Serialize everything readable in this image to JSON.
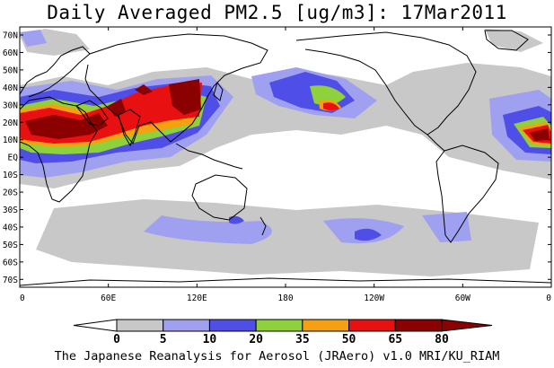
{
  "title": "Daily Averaged PM2.5 [ug/m3]: 17Mar2011",
  "footer": "The Japanese Reanalysis for Aerosol (JRAero) v1.0 MRI/KU_RIAM",
  "map": {
    "lon_ticks": [
      "0",
      "60E",
      "120E",
      "180",
      "120W",
      "60W",
      "0"
    ],
    "lat_ticks": [
      "70N",
      "60N",
      "50N",
      "40N",
      "30N",
      "20N",
      "10N",
      "EQ",
      "10S",
      "20S",
      "30S",
      "40S",
      "50S",
      "60S",
      "70S"
    ]
  },
  "colorbar": {
    "labels": [
      "0",
      "5",
      "10",
      "20",
      "35",
      "50",
      "65",
      "80"
    ],
    "colors": [
      "#ffffff",
      "#c8c8c8",
      "#a0a0f0",
      "#4f4fe8",
      "#8fd13a",
      "#f5a010",
      "#e81010",
      "#8b0000"
    ]
  },
  "colors": {
    "land_outline": "#000000",
    "frame": "#000000"
  }
}
